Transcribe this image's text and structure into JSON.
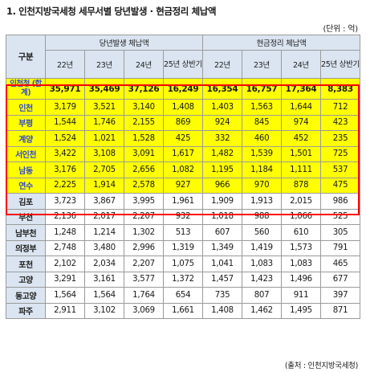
{
  "title": "1. 인천지방국세청 세무서별 당년발생 · 현금정리 체납액",
  "unit": "(단위 : 억)",
  "source": "(출처 : 인천지방국세청)",
  "headers": {
    "division": "구분",
    "group1": "당년발생 체납액",
    "group2": "현금정리 체납액",
    "years": [
      "22년",
      "23년",
      "24년",
      "25년 상반기"
    ]
  },
  "rows": [
    {
      "name": "인천청 (합계)",
      "values": [
        "35,971",
        "35,469",
        "37,126",
        "16,249",
        "16,354",
        "16,757",
        "17,364",
        "8,383"
      ],
      "highlight": true,
      "total": true
    },
    {
      "name": "인천",
      "values": [
        "3,179",
        "3,521",
        "3,140",
        "1,408",
        "1,403",
        "1,563",
        "1,644",
        "712"
      ],
      "highlight": true
    },
    {
      "name": "부평",
      "values": [
        "1,544",
        "1,746",
        "2,155",
        "869",
        "924",
        "845",
        "974",
        "423"
      ],
      "highlight": true
    },
    {
      "name": "계양",
      "values": [
        "1,524",
        "1,021",
        "1,528",
        "425",
        "332",
        "460",
        "452",
        "235"
      ],
      "highlight": true
    },
    {
      "name": "서인천",
      "values": [
        "3,422",
        "3,108",
        "3,091",
        "1,617",
        "1,482",
        "1,539",
        "1,501",
        "725"
      ],
      "highlight": true
    },
    {
      "name": "남동",
      "values": [
        "3,176",
        "2,705",
        "2,656",
        "1,082",
        "1,195",
        "1,184",
        "1,111",
        "537"
      ],
      "highlight": true
    },
    {
      "name": "연수",
      "values": [
        "2,225",
        "1,914",
        "2,578",
        "927",
        "966",
        "970",
        "878",
        "475"
      ],
      "highlight": true
    },
    {
      "name": "김포",
      "values": [
        "3,723",
        "3,867",
        "3,995",
        "1,961",
        "1,909",
        "1,913",
        "2,015",
        "986"
      ],
      "highlight": false
    },
    {
      "name": "부천",
      "values": [
        "2,136",
        "2,017",
        "2,207",
        "932",
        "1,018",
        "988",
        "1,066",
        "525"
      ],
      "highlight": false
    },
    {
      "name": "남부천",
      "values": [
        "1,248",
        "1,214",
        "1,302",
        "513",
        "607",
        "560",
        "610",
        "305"
      ],
      "highlight": false
    },
    {
      "name": "의정부",
      "values": [
        "2,748",
        "3,480",
        "2,996",
        "1,319",
        "1,349",
        "1,419",
        "1,573",
        "791"
      ],
      "highlight": false
    },
    {
      "name": "포천",
      "values": [
        "2,102",
        "2,034",
        "2,207",
        "1,075",
        "1,041",
        "1,083",
        "1,083",
        "465"
      ],
      "highlight": false
    },
    {
      "name": "고양",
      "values": [
        "3,291",
        "3,161",
        "3,577",
        "1,372",
        "1,457",
        "1,423",
        "1,496",
        "677"
      ],
      "highlight": false
    },
    {
      "name": "동고양",
      "values": [
        "1,564",
        "1,564",
        "1,764",
        "654",
        "735",
        "807",
        "911",
        "397"
      ],
      "highlight": false
    },
    {
      "name": "파주",
      "values": [
        "2,911",
        "3,102",
        "3,069",
        "1,661",
        "1,408",
        "1,462",
        "1,495",
        "871"
      ],
      "highlight": false
    }
  ]
}
